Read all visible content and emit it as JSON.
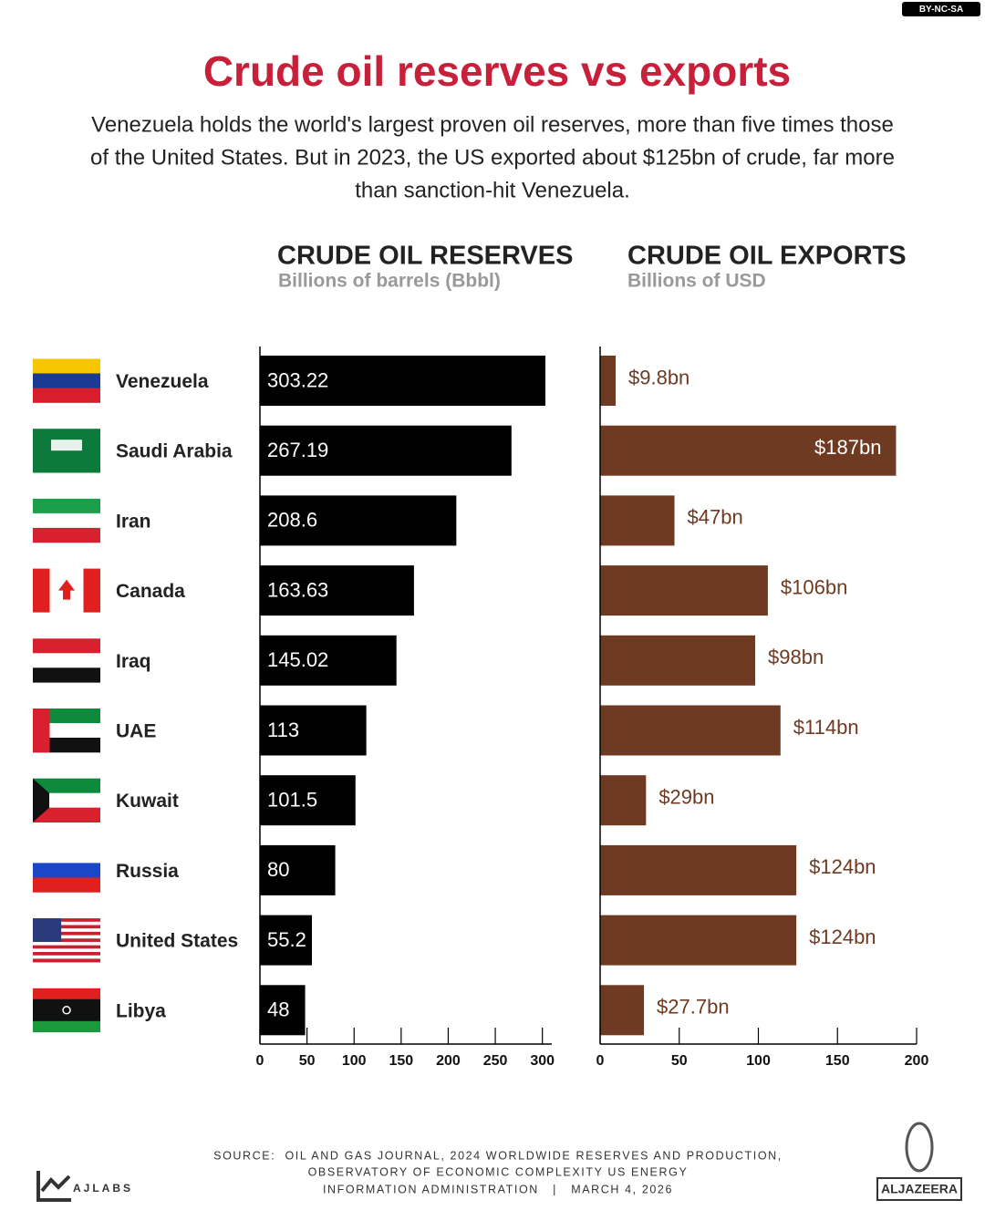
{
  "license": "BY-NC-SA",
  "header": {
    "title": "Crude oil reserves vs exports",
    "subtitle": [
      "Venezuela holds the world's largest proven oil reserves, more than five times those",
      "of the United States. But in 2023, the US exported about $125bn of crude, far more",
      "than sanction-hit Venezuela."
    ]
  },
  "chart_data": [
    {
      "type": "bar",
      "orientation": "horizontal",
      "title": "CRUDE OIL RESERVES",
      "subtitle": "Billions of barrels (Bbbl)",
      "categories": [
        "Venezuela",
        "Saudi Arabia",
        "Iran",
        "Canada",
        "Iraq",
        "UAE",
        "Kuwait",
        "Russia",
        "United States",
        "Libya"
      ],
      "values": [
        303.22,
        267.19,
        208.6,
        163.63,
        145.02,
        113,
        101.5,
        80,
        55.2,
        48
      ],
      "color": "#000000",
      "xlim": [
        0,
        310
      ],
      "xticks": [
        0,
        50,
        100,
        150,
        200,
        250,
        300
      ]
    },
    {
      "type": "bar",
      "orientation": "horizontal",
      "title": "CRUDE OIL EXPORTS",
      "subtitle": "Billions of USD",
      "values": [
        9.8,
        187,
        47,
        106,
        98,
        114,
        29,
        124,
        124,
        27.7
      ],
      "value_labels": [
        "$9.8bn",
        "$187bn",
        "$47bn",
        "$106bn",
        "$98bn",
        "$114bn",
        "$29bn",
        "$124bn",
        "$124bn",
        "$27.7bn"
      ],
      "color": "#6e3a22",
      "xlim": [
        0,
        200
      ],
      "xticks": [
        0,
        50,
        100,
        150,
        200
      ]
    }
  ],
  "footer": {
    "source": [
      "SOURCE:  OIL AND GAS JOURNAL, 2024 WORLDWIDE RESERVES AND PRODUCTION,",
      "OBSERVATORY OF ECONOMIC COMPLEXITY US ENERGY",
      "INFORMATION ADMINISTRATION   |   MARCH 4, 2026"
    ],
    "left_logo": "AJLABS",
    "right_logo": "ALJAZEERA"
  }
}
